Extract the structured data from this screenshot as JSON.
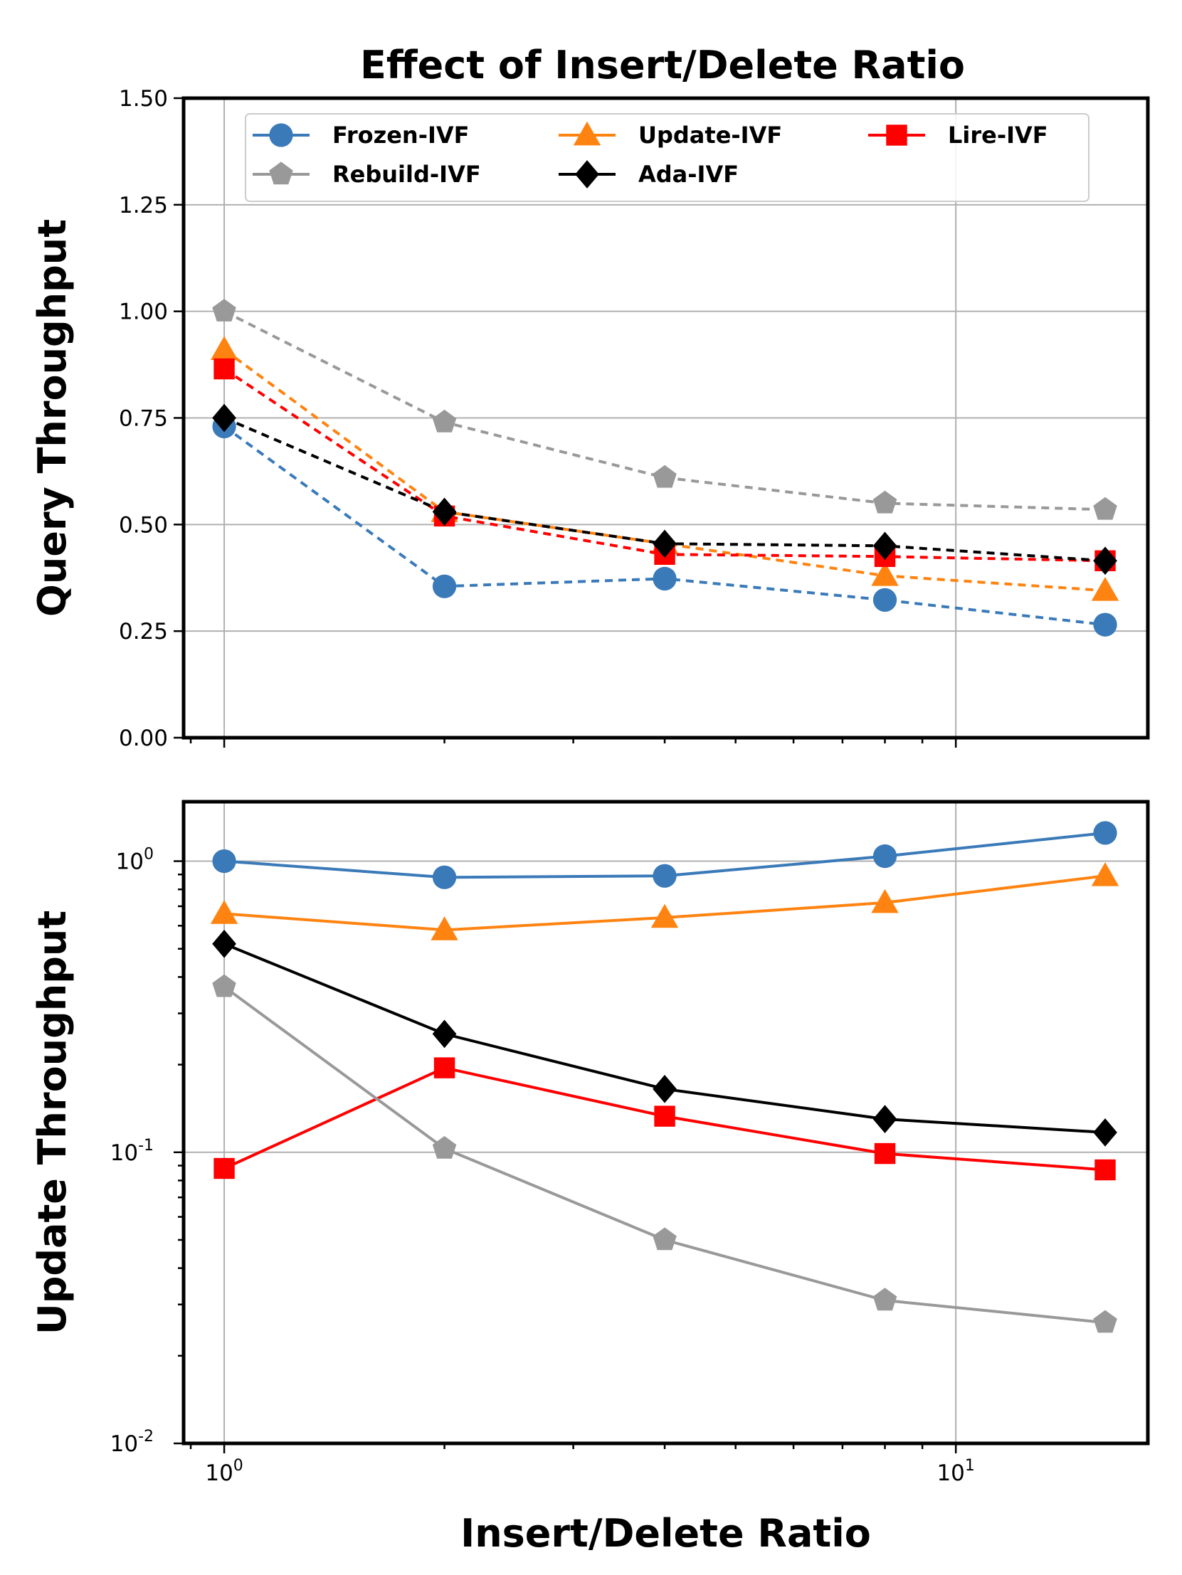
{
  "figure": {
    "title": "Effect of Insert/Delete Ratio"
  },
  "chart_data": [
    {
      "type": "line",
      "title": "Effect of Insert/Delete Ratio",
      "xlabel": "",
      "ylabel": "Query Throughput",
      "xscale": "log",
      "yscale": "linear",
      "linestyle": "dashed",
      "x": [
        1,
        2,
        4,
        8,
        16
      ],
      "xlim": [
        0.88,
        18.3
      ],
      "ylim": [
        0,
        1.5
      ],
      "yticks": [
        0.0,
        0.25,
        0.5,
        0.75,
        1.0,
        1.25,
        1.5
      ],
      "ytick_labels": [
        "0.00",
        "0.25",
        "0.50",
        "0.75",
        "1.00",
        "1.25",
        "1.50"
      ],
      "grid": true,
      "legend": {
        "placement": "top",
        "columns": 3
      },
      "series": [
        {
          "name": "Frozen-IVF",
          "color": "#3a7ab8",
          "marker": "circle",
          "values": [
            0.73,
            0.355,
            0.373,
            0.323,
            0.265
          ]
        },
        {
          "name": "Update-IVF",
          "color": "#ff8310",
          "marker": "triangle",
          "values": [
            0.91,
            0.53,
            0.455,
            0.38,
            0.345
          ]
        },
        {
          "name": "Lire-IVF",
          "color": "#ff0000",
          "marker": "square",
          "values": [
            0.865,
            0.52,
            0.43,
            0.425,
            0.415
          ]
        },
        {
          "name": "Rebuild-IVF",
          "color": "#999999",
          "marker": "pentagon",
          "values": [
            1.0,
            0.74,
            0.61,
            0.55,
            0.535
          ]
        },
        {
          "name": "Ada-IVF",
          "color": "#000000",
          "marker": "diamond",
          "values": [
            0.75,
            0.53,
            0.455,
            0.45,
            0.415
          ]
        }
      ]
    },
    {
      "type": "line",
      "title": "",
      "xlabel": "Insert/Delete Ratio",
      "ylabel": "Update Throughput",
      "xscale": "log",
      "yscale": "log",
      "linestyle": "solid",
      "x": [
        1,
        2,
        4,
        8,
        16
      ],
      "xlim": [
        0.88,
        18.3
      ],
      "ylim": [
        0.01,
        1.6
      ],
      "xtick_labels": [
        "10^0",
        "10^1"
      ],
      "ytick_labels": [
        "10^-2",
        "10^-1",
        "10^0"
      ],
      "grid": true,
      "series": [
        {
          "name": "Frozen-IVF",
          "color": "#3a7ab8",
          "marker": "circle",
          "values": [
            1.0,
            0.88,
            0.89,
            1.04,
            1.25
          ]
        },
        {
          "name": "Update-IVF",
          "color": "#ff8310",
          "marker": "triangle",
          "values": [
            0.66,
            0.58,
            0.64,
            0.72,
            0.89
          ]
        },
        {
          "name": "Lire-IVF",
          "color": "#ff0000",
          "marker": "square",
          "values": [
            0.088,
            0.195,
            0.133,
            0.099,
            0.087
          ]
        },
        {
          "name": "Rebuild-IVF",
          "color": "#999999",
          "marker": "pentagon",
          "values": [
            0.37,
            0.103,
            0.05,
            0.031,
            0.026
          ]
        },
        {
          "name": "Ada-IVF",
          "color": "#000000",
          "marker": "diamond",
          "values": [
            0.52,
            0.255,
            0.165,
            0.13,
            0.117
          ]
        }
      ]
    }
  ]
}
